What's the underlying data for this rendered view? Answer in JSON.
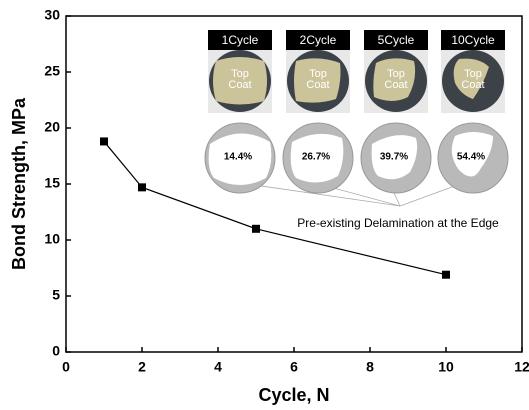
{
  "chart_data": {
    "type": "line",
    "x_label": "Cycle, N",
    "y_label": "Bond Strength, MPa",
    "x": [
      1,
      2,
      5,
      10
    ],
    "series": [
      {
        "color": "#000000",
        "values": [
          18.8,
          14.7,
          11.0,
          6.9
        ]
      }
    ],
    "xlim": [
      0,
      12
    ],
    "xticks": [
      0,
      2,
      4,
      6,
      8,
      10,
      12
    ],
    "ylim": [
      0,
      30
    ],
    "yticks": [
      0,
      5,
      10,
      15,
      20,
      25,
      30
    ],
    "insets": [
      {
        "label": "1Cycle",
        "photo_text": [
          "Top",
          "Coat"
        ],
        "percent": "14.4%"
      },
      {
        "label": "2Cycle",
        "photo_text": [
          "Top",
          "Coat"
        ],
        "percent": "26.7%"
      },
      {
        "label": "5Cycle",
        "photo_text": [
          "Top",
          "Coat"
        ],
        "percent": "39.7%"
      },
      {
        "label": "10Cycle",
        "photo_text": [
          "Top",
          "Coat"
        ],
        "percent": "54.4%"
      }
    ],
    "annotation": "Pre-existing Delamination at the Edge"
  }
}
